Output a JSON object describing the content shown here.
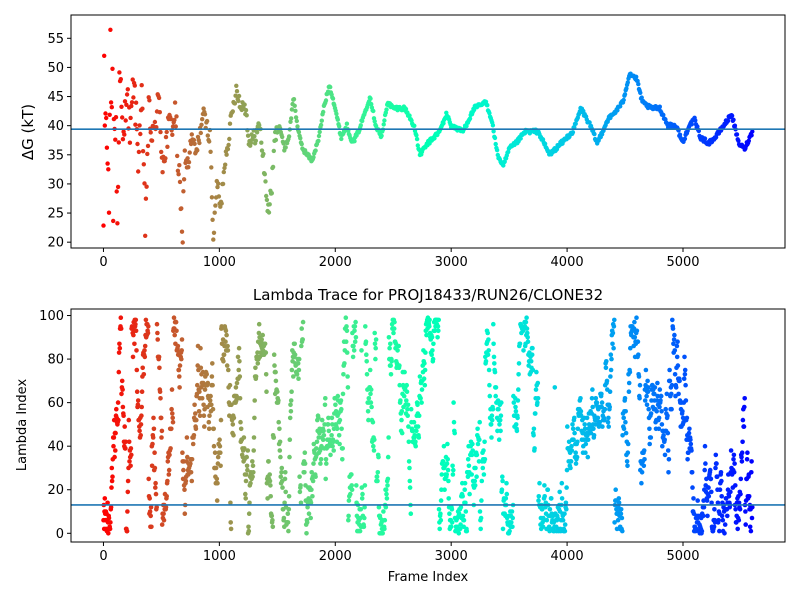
{
  "chart_data": [
    {
      "type": "scatter",
      "title": "",
      "xlabel": "",
      "ylabel": "ΔG (kT)",
      "xlim": [
        -280,
        5880
      ],
      "ylim": [
        19,
        59
      ],
      "xticks": [
        0,
        1000,
        2000,
        3000,
        4000,
        5000
      ],
      "yticks": [
        20,
        25,
        30,
        35,
        40,
        45,
        50,
        55
      ],
      "reference_line": 39.4,
      "reference_color": "#1f77b4",
      "colormap": "rainbow (reversed by frame index: red at frame 0, violet at last frame)",
      "grid": false,
      "legend": "none",
      "x_range_frames": [
        0,
        5600
      ],
      "keypoints": [
        [
          0,
          20
        ],
        [
          5,
          55
        ],
        [
          10,
          38
        ],
        [
          20,
          45
        ],
        [
          40,
          30
        ],
        [
          60,
          47
        ],
        [
          80,
          37
        ],
        [
          100,
          42
        ],
        [
          120,
          24
        ],
        [
          140,
          50
        ],
        [
          170,
          36
        ],
        [
          200,
          47
        ],
        [
          230,
          38
        ],
        [
          260,
          48
        ],
        [
          300,
          35
        ],
        [
          330,
          44
        ],
        [
          360,
          23
        ],
        [
          390,
          42
        ],
        [
          430,
          37
        ],
        [
          470,
          45
        ],
        [
          510,
          34
        ],
        [
          560,
          39
        ],
        [
          620,
          42
        ],
        [
          660,
          28
        ],
        [
          680,
          20
        ],
        [
          700,
          35
        ],
        [
          730,
          33
        ],
        [
          760,
          38
        ],
        [
          800,
          35
        ],
        [
          860,
          42
        ],
        [
          920,
          38
        ],
        [
          950,
          20
        ],
        [
          980,
          31
        ],
        [
          1010,
          25
        ],
        [
          1040,
          33
        ],
        [
          1080,
          38
        ],
        [
          1110,
          42
        ],
        [
          1150,
          47
        ],
        [
          1180,
          43
        ],
        [
          1220,
          44
        ],
        [
          1260,
          37
        ],
        [
          1300,
          38
        ],
        [
          1350,
          40
        ],
        [
          1390,
          32
        ],
        [
          1420,
          25
        ],
        [
          1450,
          29
        ],
        [
          1480,
          38
        ],
        [
          1520,
          40
        ],
        [
          1560,
          36
        ],
        [
          1600,
          38
        ],
        [
          1640,
          45
        ],
        [
          1680,
          39
        ],
        [
          1720,
          36
        ],
        [
          1760,
          35
        ],
        [
          1800,
          34
        ],
        [
          1860,
          38
        ],
        [
          1900,
          43
        ],
        [
          1950,
          47
        ],
        [
          2000,
          43
        ],
        [
          2050,
          38
        ],
        [
          2100,
          40
        ],
        [
          2150,
          37
        ],
        [
          2200,
          39
        ],
        [
          2250,
          42
        ],
        [
          2300,
          45
        ],
        [
          2350,
          40
        ],
        [
          2400,
          38
        ],
        [
          2450,
          44
        ],
        [
          2500,
          43
        ],
        [
          2600,
          43
        ],
        [
          2680,
          40
        ],
        [
          2730,
          35
        ],
        [
          2800,
          37
        ],
        [
          2900,
          39
        ],
        [
          2960,
          42
        ],
        [
          3000,
          40
        ],
        [
          3100,
          39
        ],
        [
          3200,
          43
        ],
        [
          3300,
          44
        ],
        [
          3350,
          41
        ],
        [
          3400,
          35
        ],
        [
          3450,
          33
        ],
        [
          3500,
          36
        ],
        [
          3560,
          37
        ],
        [
          3640,
          39
        ],
        [
          3750,
          39
        ],
        [
          3800,
          37
        ],
        [
          3850,
          35
        ],
        [
          3950,
          37
        ],
        [
          4050,
          39
        ],
        [
          4120,
          43
        ],
        [
          4200,
          40
        ],
        [
          4260,
          37
        ],
        [
          4350,
          41
        ],
        [
          4400,
          42
        ],
        [
          4480,
          44
        ],
        [
          4540,
          49
        ],
        [
          4600,
          48
        ],
        [
          4650,
          44
        ],
        [
          4720,
          43
        ],
        [
          4800,
          43
        ],
        [
          4870,
          40
        ],
        [
          4940,
          40
        ],
        [
          5000,
          37
        ],
        [
          5050,
          40
        ],
        [
          5100,
          41
        ],
        [
          5150,
          38
        ],
        [
          5220,
          37
        ],
        [
          5280,
          38
        ],
        [
          5350,
          40
        ],
        [
          5420,
          42
        ],
        [
          5480,
          37
        ],
        [
          5530,
          36
        ],
        [
          5600,
          39
        ]
      ]
    },
    {
      "type": "scatter",
      "title": "Lambda Trace for PROJ18433/RUN26/CLONE32",
      "xlabel": "Frame Index",
      "ylabel": "Lambda Index",
      "xlim": [
        -280,
        5880
      ],
      "ylim": [
        -4,
        103
      ],
      "xticks": [
        0,
        1000,
        2000,
        3000,
        4000,
        5000
      ],
      "yticks": [
        0,
        20,
        40,
        60,
        80,
        100
      ],
      "reference_line": 13,
      "reference_color": "#1f77b4",
      "colormap": "rainbow (reversed by frame index: red at frame 0, violet at last frame)",
      "grid": false,
      "legend": "none",
      "x_range_frames": [
        0,
        5600
      ],
      "lambda_range": [
        0,
        99
      ]
    }
  ]
}
